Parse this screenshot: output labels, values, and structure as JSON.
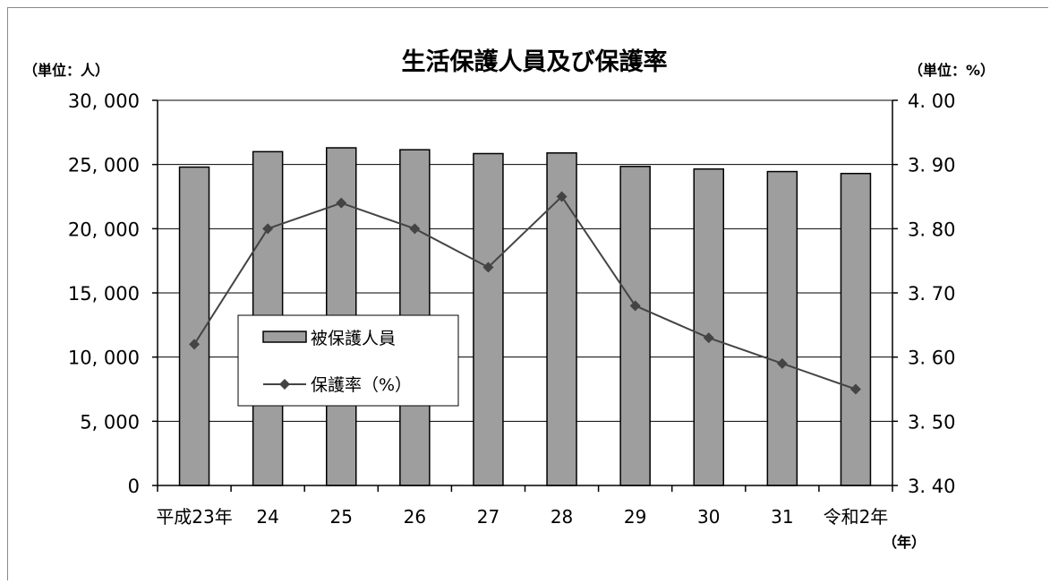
{
  "chart_data": {
    "type": "bar+line",
    "title": "生活保護人員及び保護率",
    "left_unit": "（単位：人）",
    "right_unit": "（単位：%）",
    "x_unit": "（年）",
    "categories": [
      "平成23年",
      "24",
      "25",
      "26",
      "27",
      "28",
      "29",
      "30",
      "31",
      "令和2年"
    ],
    "left_axis": {
      "ylim": [
        0,
        30000
      ],
      "tick_values": [
        0,
        5000,
        10000,
        15000,
        20000,
        25000,
        30000
      ],
      "tick_labels": [
        "0",
        "5, 000",
        "10, 000",
        "15, 000",
        "20, 000",
        "25, 000",
        "30, 000"
      ]
    },
    "right_axis": {
      "ylim": [
        3.4,
        4.0
      ],
      "tick_values": [
        3.4,
        3.5,
        3.6,
        3.7,
        3.8,
        3.9,
        4.0
      ],
      "tick_labels": [
        "3. 40",
        "3. 50",
        "3. 60",
        "3. 70",
        "3. 80",
        "3. 90",
        "4. 00"
      ]
    },
    "series": [
      {
        "name": "被保護人員",
        "type": "bar",
        "axis": "left",
        "color": "#9e9e9e",
        "values": [
          24800,
          26000,
          26300,
          26150,
          25850,
          25900,
          24850,
          24650,
          24450,
          24300
        ]
      },
      {
        "name": "保護率（%）",
        "type": "line",
        "axis": "right",
        "color": "#444444",
        "values": [
          3.62,
          3.8,
          3.84,
          3.8,
          3.74,
          3.85,
          3.68,
          3.63,
          3.59,
          3.55
        ]
      }
    ],
    "grid": true,
    "legend": "left-center"
  }
}
